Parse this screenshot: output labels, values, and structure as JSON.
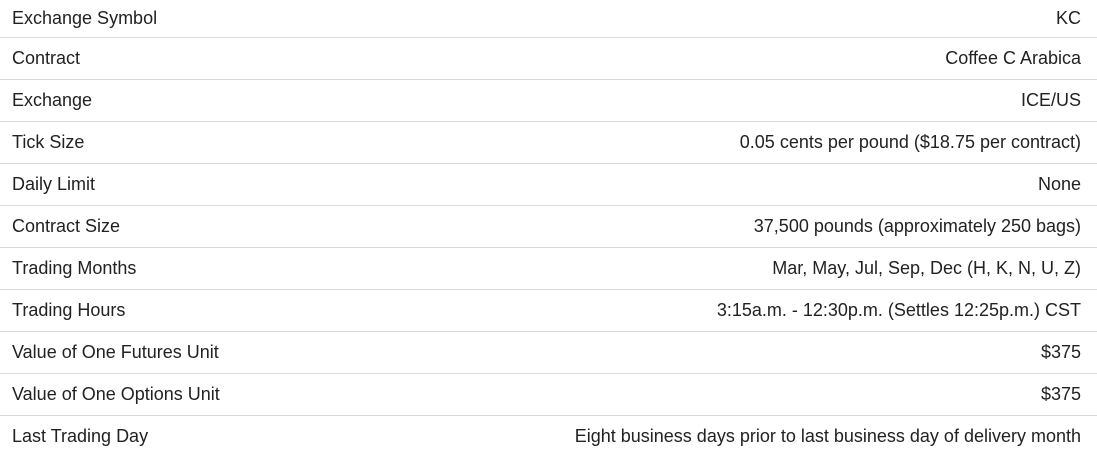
{
  "specs": [
    {
      "label": "Exchange Symbol",
      "value": "KC"
    },
    {
      "label": "Contract",
      "value": "Coffee C Arabica"
    },
    {
      "label": "Exchange",
      "value": "ICE/US"
    },
    {
      "label": "Tick Size",
      "value": "0.05 cents per pound ($18.75 per contract)"
    },
    {
      "label": "Daily Limit",
      "value": "None"
    },
    {
      "label": "Contract Size",
      "value": "37,500 pounds (approximately 250 bags)"
    },
    {
      "label": "Trading Months",
      "value": "Mar, May, Jul, Sep, Dec (H, K, N, U, Z)"
    },
    {
      "label": "Trading Hours",
      "value": "3:15a.m. - 12:30p.m. (Settles 12:25p.m.) CST"
    },
    {
      "label": "Value of One Futures Unit",
      "value": "$375"
    },
    {
      "label": "Value of One Options Unit",
      "value": "$375"
    },
    {
      "label": "Last Trading Day",
      "value": "Eight business days prior to last business day of delivery month"
    }
  ]
}
